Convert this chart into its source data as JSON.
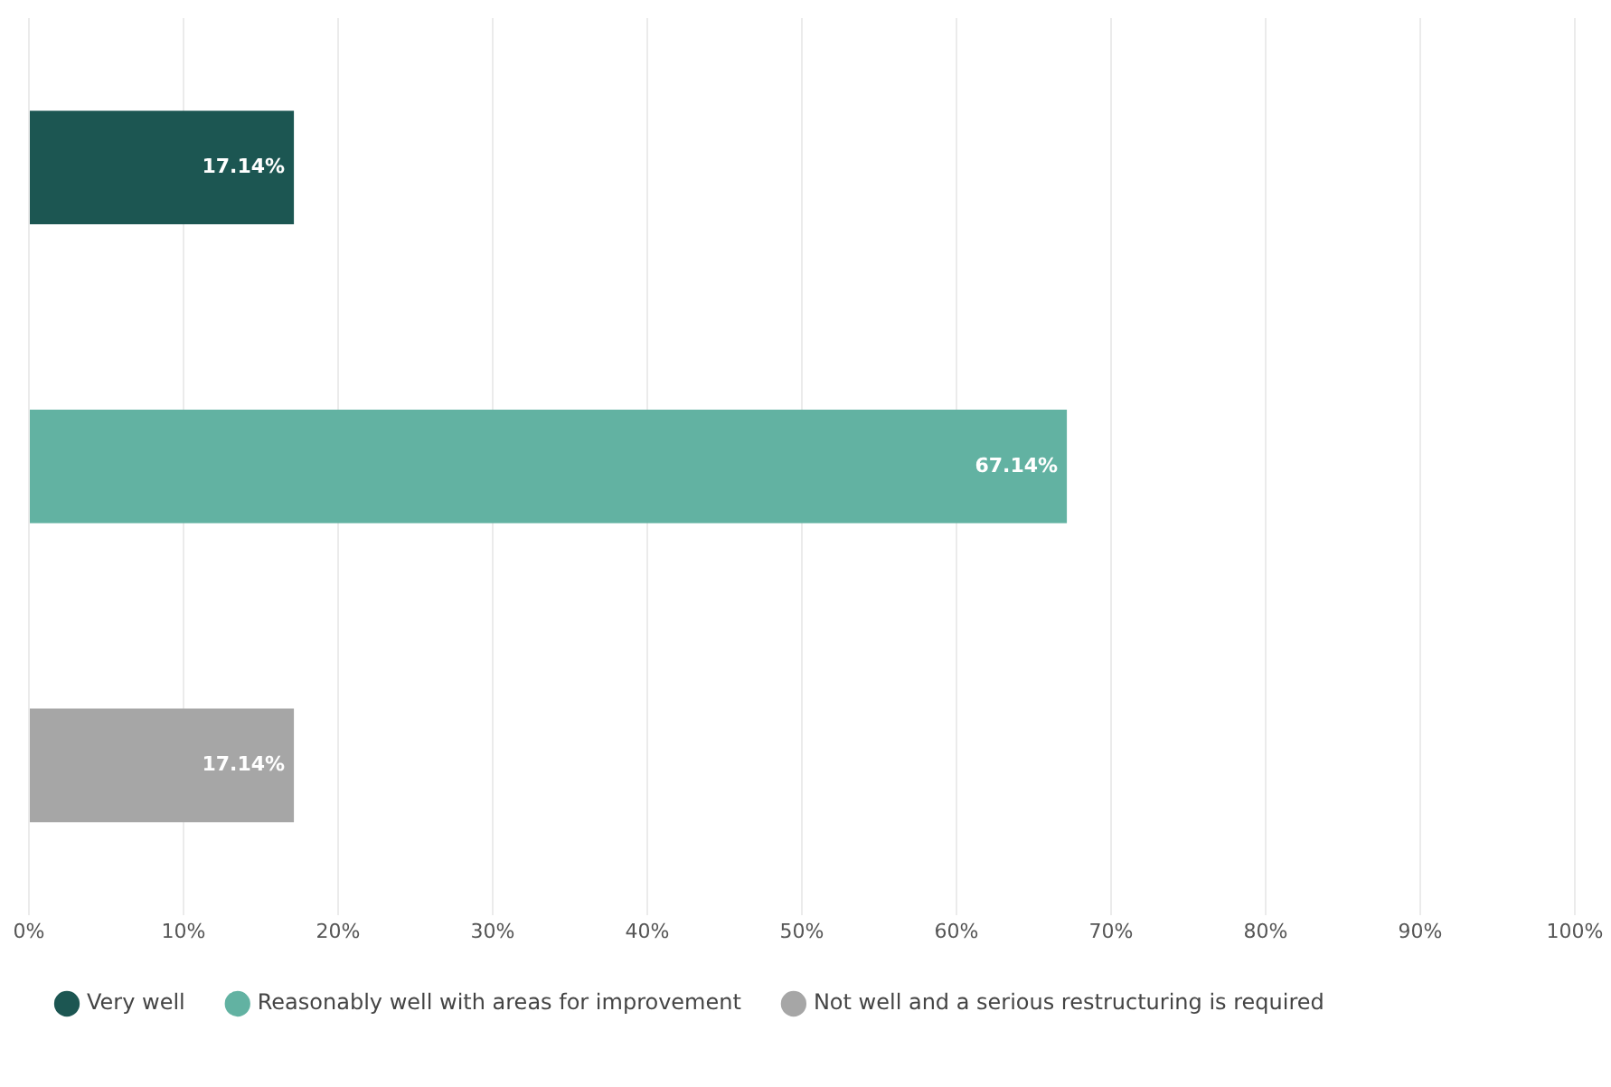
{
  "chart_data": {
    "type": "bar",
    "orientation": "horizontal",
    "categories": [
      null,
      null,
      null
    ],
    "series": [
      {
        "name": "Very well",
        "color": "#1c5652",
        "values": [
          17.14,
          null,
          null
        ],
        "value_labels": [
          "17.14%",
          null,
          null
        ]
      },
      {
        "name": "Reasonably well with areas for improvement",
        "color": "#62b2a2",
        "values": [
          null,
          67.14,
          null
        ],
        "value_labels": [
          null,
          "67.14%",
          null
        ]
      },
      {
        "name": "Not well and a serious restructuring is required",
        "color": "#a6a6a6",
        "values": [
          null,
          null,
          17.14
        ],
        "value_labels": [
          null,
          null,
          "17.14%"
        ]
      }
    ],
    "xlim": [
      0,
      100
    ],
    "xticks": [
      {
        "value": 0,
        "label": "0%"
      },
      {
        "value": 10,
        "label": "10%"
      },
      {
        "value": 20,
        "label": "20%"
      },
      {
        "value": 30,
        "label": "30%"
      },
      {
        "value": 40,
        "label": "40%"
      },
      {
        "value": 50,
        "label": "50%"
      },
      {
        "value": 60,
        "label": "60%"
      },
      {
        "value": 70,
        "label": "70%"
      },
      {
        "value": 80,
        "label": "80%"
      },
      {
        "value": 90,
        "label": "90%"
      },
      {
        "value": 100,
        "label": "100%"
      }
    ],
    "grid": "x",
    "legend": "bottom left",
    "marker": "circle"
  }
}
